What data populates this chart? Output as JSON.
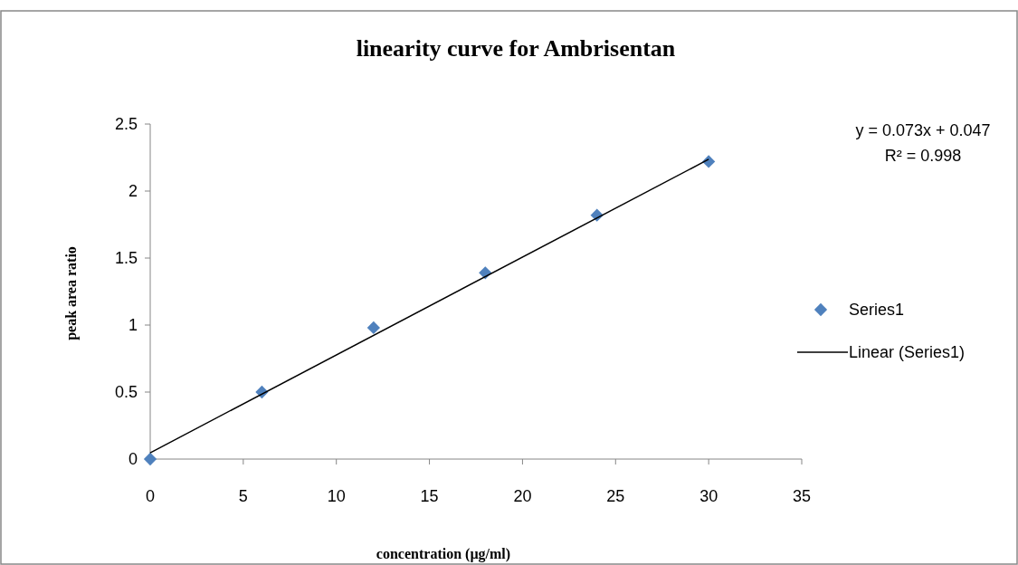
{
  "chart_data": {
    "type": "scatter",
    "title": "linearity curve for Ambrisentan",
    "xlabel": "concentration (µg/ml)",
    "ylabel": "peak area ratio",
    "annotations": [
      "y = 0.073x + 0.047",
      "R² = 0.998"
    ],
    "series": [
      {
        "name": "Series1",
        "color": "#4f81bd",
        "marker": "diamond",
        "x": [
          0,
          6,
          12,
          18,
          24,
          30
        ],
        "values": [
          0,
          0.5,
          0.98,
          1.39,
          1.82,
          2.22
        ]
      },
      {
        "name": "Linear (Series1)",
        "type": "line",
        "color": "#000000",
        "marker": "none",
        "line_style": "solid",
        "x": [
          0,
          30
        ],
        "values": [
          0.047,
          2.237
        ]
      }
    ],
    "xlim": [
      0,
      35
    ],
    "xticks": [
      0,
      5,
      10,
      15,
      20,
      25,
      30,
      35
    ],
    "ylim": [
      0,
      2.5
    ],
    "yticks": [
      0,
      0.5,
      1,
      1.5,
      2,
      2.5
    ],
    "grid": false,
    "legend": "right"
  }
}
